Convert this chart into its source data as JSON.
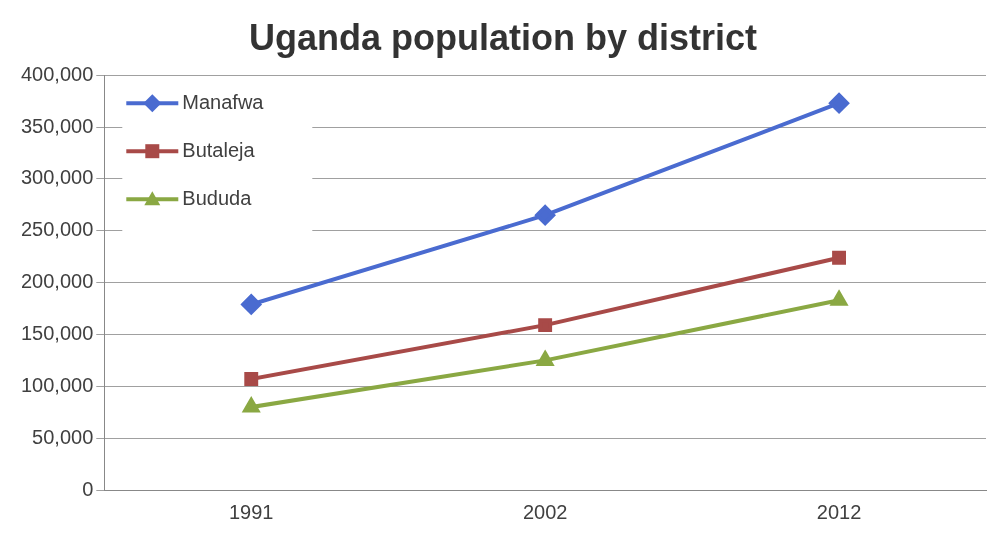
{
  "chart_data": {
    "type": "line",
    "title": "Uganda population by district",
    "categories": [
      "1991",
      "2002",
      "2012"
    ],
    "series": [
      {
        "name": "Manafwa",
        "color": "#4a6bd0",
        "marker": "diamond",
        "values": [
          179000,
          265000,
          373000
        ]
      },
      {
        "name": "Butaleja",
        "color": "#a84a48",
        "marker": "square",
        "values": [
          107000,
          159000,
          224000
        ]
      },
      {
        "name": "Bududa",
        "color": "#8aa843",
        "marker": "triangle",
        "values": [
          80000,
          125000,
          183000
        ]
      }
    ],
    "ylim": [
      0,
      400000
    ],
    "yticks": [
      0,
      {
        "value": 50000,
        "label": "50,000"
      },
      {
        "value": 100000,
        "label": "100,000"
      },
      {
        "value": 150000,
        "label": "150,000"
      },
      {
        "value": 200000,
        "label": "200,000"
      },
      {
        "value": 250000,
        "label": "250,000"
      },
      {
        "value": 300000,
        "label": "300,000"
      },
      {
        "value": 350000,
        "label": "350,000"
      },
      {
        "value": 400000,
        "label": "400,000"
      }
    ],
    "grid": "y",
    "legend": "top left"
  }
}
